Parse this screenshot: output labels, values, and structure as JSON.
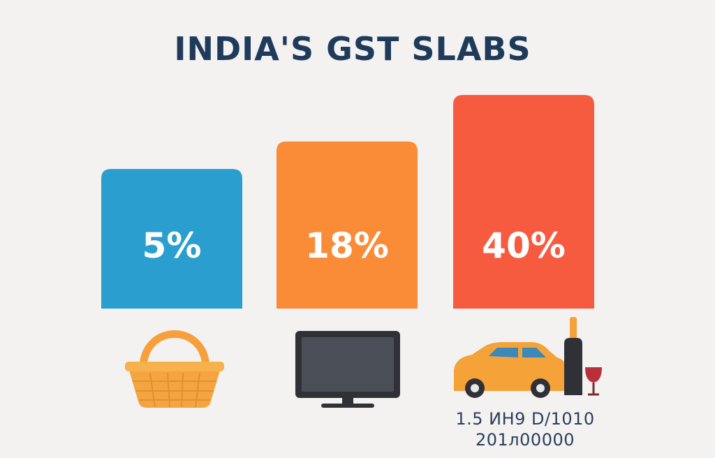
{
  "chart_data": {
    "type": "bar",
    "title": "INDIA'S GST SLABS",
    "categories": [
      "5%",
      "18%",
      "40%"
    ],
    "values": [
      5,
      18,
      40
    ],
    "value_labels": [
      "5%",
      "18%",
      "40%"
    ],
    "colors": [
      "#2a9fcf",
      "#fa8c38",
      "#f65b40"
    ],
    "xlabel": "",
    "ylabel": "",
    "grid": false,
    "legend": "none",
    "category_icons": [
      "basket-icon",
      "television-icon",
      "car-and-wine-icon"
    ],
    "annotation_lines": [
      "1.5 ИН9 D/1010",
      "201л00000"
    ]
  }
}
